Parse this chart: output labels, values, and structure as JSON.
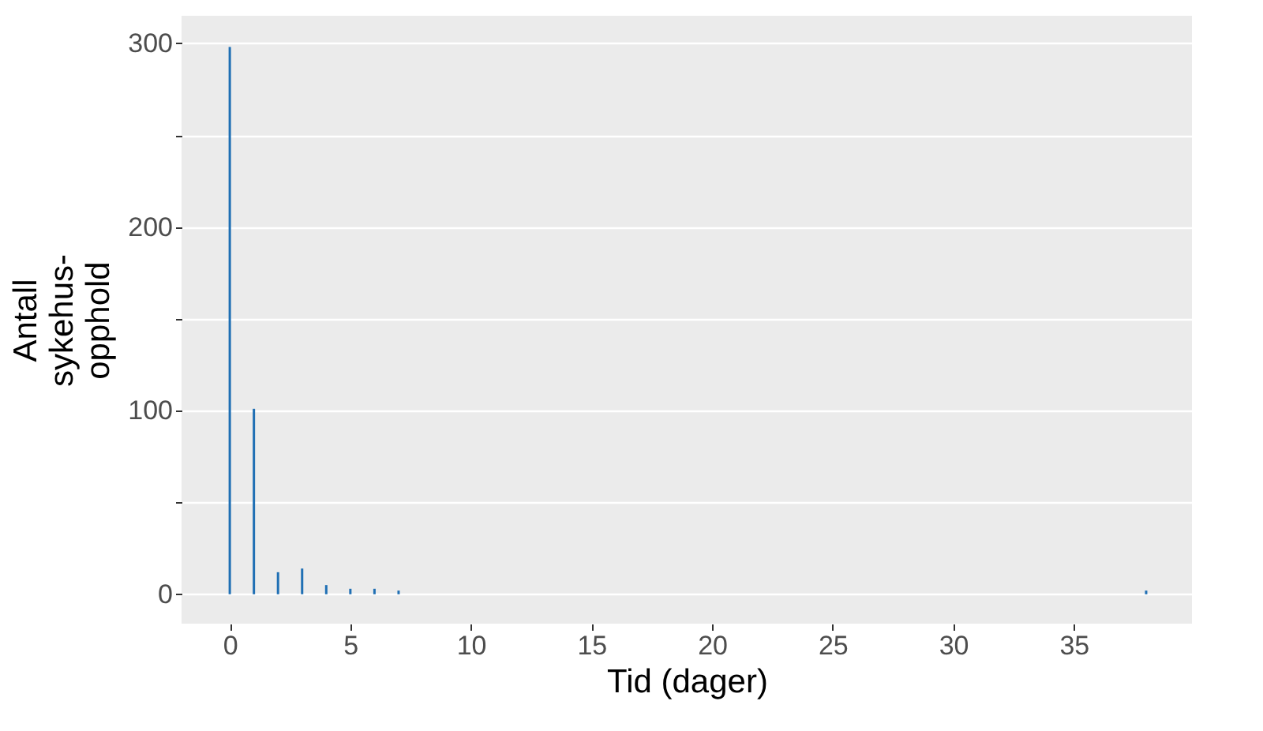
{
  "chart_data": {
    "type": "bar",
    "xlabel": "Tid (dager)",
    "ylabel": "Antall\nsykehus-\nopphold",
    "x": [
      0,
      1,
      2,
      3,
      4,
      5,
      6,
      7,
      38
    ],
    "series": [
      {
        "color": "#1f6fb4",
        "values": [
          298,
          101,
          12,
          14,
          5,
          3,
          3,
          2,
          2
        ]
      }
    ],
    "xlim": [
      -2,
      39.9
    ],
    "xticks": [
      0,
      5,
      10,
      15,
      20,
      25,
      30,
      35
    ],
    "ylim": [
      -16,
      315
    ],
    "yticks": [
      0,
      {
        "value": 50,
        "label": null
      },
      100,
      {
        "value": 150,
        "label": null
      },
      200,
      {
        "value": 250,
        "label": null
      },
      300
    ],
    "grid": "y"
  }
}
